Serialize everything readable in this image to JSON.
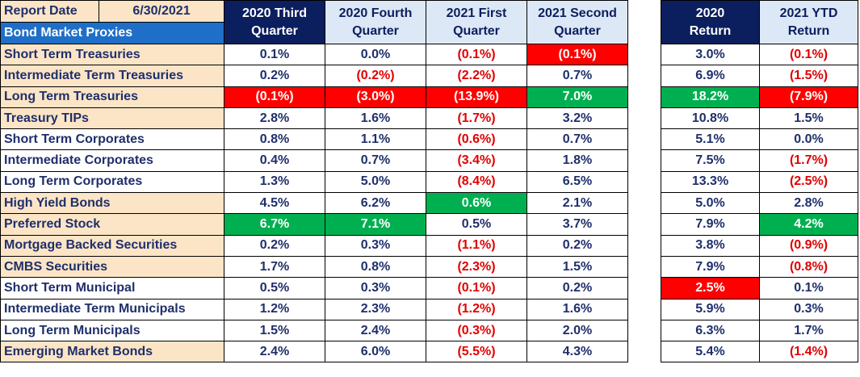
{
  "report": {
    "date_label": "Report Date",
    "date_value": "6/30/2021",
    "section_label": "Bond Market Proxies"
  },
  "columns": [
    {
      "line1": "2020 Third",
      "line2": "Quarter"
    },
    {
      "line1": "2020 Fourth",
      "line2": "Quarter"
    },
    {
      "line1": "2021 First",
      "line2": "Quarter"
    },
    {
      "line1": "2021 Second",
      "line2": "Quarter"
    }
  ],
  "return_columns": [
    {
      "line1": "2020",
      "line2": "Return"
    },
    {
      "line1": "2021 YTD",
      "line2": "Return"
    }
  ],
  "colors": {
    "header_dark": "#0b1e5e",
    "header_light": "#dde8f6",
    "header_blue": "#1f6fc8",
    "tan": "#fbe5c6",
    "best": "#00b050",
    "worst": "#ff0000",
    "negative_text": "#e00000"
  },
  "rows": [
    {
      "name": "Short Term Treasuries",
      "band": "tan",
      "q": [
        {
          "v": "0.1%"
        },
        {
          "v": "0.0%"
        },
        {
          "v": "(0.1%)",
          "neg": true
        },
        {
          "v": "(0.1%)",
          "neg": true,
          "hl": "red"
        }
      ],
      "r": [
        {
          "v": "3.0%"
        },
        {
          "v": "(0.1%)",
          "neg": true
        }
      ]
    },
    {
      "name": "Intermediate Term Treasuries",
      "band": "tan",
      "q": [
        {
          "v": "0.2%"
        },
        {
          "v": "(0.2%)",
          "neg": true
        },
        {
          "v": "(2.2%)",
          "neg": true
        },
        {
          "v": "0.7%"
        }
      ],
      "r": [
        {
          "v": "6.9%"
        },
        {
          "v": "(1.5%)",
          "neg": true
        }
      ]
    },
    {
      "name": "Long Term Treasuries",
      "band": "tan",
      "q": [
        {
          "v": "(0.1%)",
          "neg": true,
          "hl": "red"
        },
        {
          "v": "(3.0%)",
          "neg": true,
          "hl": "red"
        },
        {
          "v": "(13.9%)",
          "neg": true,
          "hl": "red"
        },
        {
          "v": "7.0%",
          "hl": "green"
        }
      ],
      "r": [
        {
          "v": "18.2%",
          "hl": "green"
        },
        {
          "v": "(7.9%)",
          "neg": true,
          "hl": "red"
        }
      ]
    },
    {
      "name": "Treasury TIPs",
      "band": "tan",
      "q": [
        {
          "v": "2.8%"
        },
        {
          "v": "1.6%"
        },
        {
          "v": "(1.7%)",
          "neg": true
        },
        {
          "v": "3.2%"
        }
      ],
      "r": [
        {
          "v": "10.8%"
        },
        {
          "v": "1.5%"
        }
      ]
    },
    {
      "name": "Short Term Corporates",
      "band": "white",
      "q": [
        {
          "v": "0.8%"
        },
        {
          "v": "1.1%"
        },
        {
          "v": "(0.6%)",
          "neg": true
        },
        {
          "v": "0.7%"
        }
      ],
      "r": [
        {
          "v": "5.1%"
        },
        {
          "v": "0.0%"
        }
      ]
    },
    {
      "name": "Intermediate Corporates",
      "band": "white",
      "q": [
        {
          "v": "0.4%"
        },
        {
          "v": "0.7%"
        },
        {
          "v": "(3.4%)",
          "neg": true
        },
        {
          "v": "1.8%"
        }
      ],
      "r": [
        {
          "v": "7.5%"
        },
        {
          "v": "(1.7%)",
          "neg": true
        }
      ]
    },
    {
      "name": "Long Term Corporates",
      "band": "white",
      "q": [
        {
          "v": "1.3%"
        },
        {
          "v": "5.0%"
        },
        {
          "v": "(8.4%)",
          "neg": true
        },
        {
          "v": "6.5%"
        }
      ],
      "r": [
        {
          "v": "13.3%"
        },
        {
          "v": "(2.5%)",
          "neg": true
        }
      ]
    },
    {
      "name": "High Yield Bonds",
      "band": "tan",
      "q": [
        {
          "v": "4.5%"
        },
        {
          "v": "6.2%"
        },
        {
          "v": "0.6%",
          "hl": "green"
        },
        {
          "v": "2.1%"
        }
      ],
      "r": [
        {
          "v": "5.0%"
        },
        {
          "v": "2.8%"
        }
      ]
    },
    {
      "name": "Preferred Stock",
      "band": "tan",
      "q": [
        {
          "v": "6.7%",
          "hl": "green"
        },
        {
          "v": "7.1%",
          "hl": "green"
        },
        {
          "v": "0.5%"
        },
        {
          "v": "3.7%"
        }
      ],
      "r": [
        {
          "v": "7.9%"
        },
        {
          "v": "4.2%",
          "hl": "green"
        }
      ]
    },
    {
      "name": "Mortgage Backed Securities",
      "band": "tan",
      "q": [
        {
          "v": "0.2%"
        },
        {
          "v": "0.3%"
        },
        {
          "v": "(1.1%)",
          "neg": true
        },
        {
          "v": "0.2%"
        }
      ],
      "r": [
        {
          "v": "3.8%"
        },
        {
          "v": "(0.9%)",
          "neg": true
        }
      ]
    },
    {
      "name": "CMBS Securities",
      "band": "tan",
      "q": [
        {
          "v": "1.7%"
        },
        {
          "v": "0.8%"
        },
        {
          "v": "(2.3%)",
          "neg": true
        },
        {
          "v": "1.5%"
        }
      ],
      "r": [
        {
          "v": "7.9%"
        },
        {
          "v": "(0.8%)",
          "neg": true
        }
      ]
    },
    {
      "name": "Short Term Municipal",
      "band": "white",
      "q": [
        {
          "v": "0.5%"
        },
        {
          "v": "0.3%"
        },
        {
          "v": "(0.1%)",
          "neg": true
        },
        {
          "v": "0.2%"
        }
      ],
      "r": [
        {
          "v": "2.5%",
          "hl": "red"
        },
        {
          "v": "0.1%"
        }
      ]
    },
    {
      "name": "Intermediate Term Municipals",
      "band": "white",
      "q": [
        {
          "v": "1.2%"
        },
        {
          "v": "2.3%"
        },
        {
          "v": "(1.2%)",
          "neg": true
        },
        {
          "v": "1.6%"
        }
      ],
      "r": [
        {
          "v": "5.9%"
        },
        {
          "v": "0.3%"
        }
      ]
    },
    {
      "name": "Long Term Municipals",
      "band": "white",
      "q": [
        {
          "v": "1.5%"
        },
        {
          "v": "2.4%"
        },
        {
          "v": "(0.3%)",
          "neg": true
        },
        {
          "v": "2.0%"
        }
      ],
      "r": [
        {
          "v": "6.3%"
        },
        {
          "v": "1.7%"
        }
      ]
    },
    {
      "name": "Emerging Market Bonds",
      "band": "tan",
      "q": [
        {
          "v": "2.4%"
        },
        {
          "v": "6.0%"
        },
        {
          "v": "(5.5%)",
          "neg": true
        },
        {
          "v": "4.3%"
        }
      ],
      "r": [
        {
          "v": "5.4%"
        },
        {
          "v": "(1.4%)",
          "neg": true
        }
      ]
    }
  ]
}
